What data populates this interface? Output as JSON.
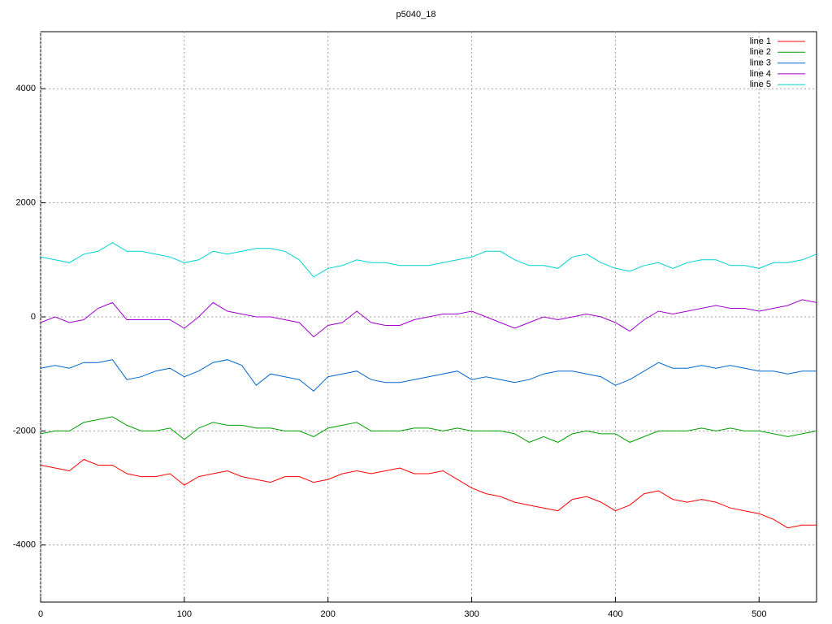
{
  "chart_data": {
    "type": "line",
    "title": "p5040_18",
    "x": [
      0,
      10,
      20,
      30,
      40,
      50,
      60,
      70,
      80,
      90,
      100,
      110,
      120,
      130,
      140,
      150,
      160,
      170,
      180,
      190,
      200,
      210,
      220,
      230,
      240,
      250,
      260,
      270,
      280,
      290,
      300,
      310,
      320,
      330,
      340,
      350,
      360,
      370,
      380,
      390,
      400,
      410,
      420,
      430,
      440,
      450,
      460,
      470,
      480,
      490,
      500,
      510,
      520,
      530,
      540
    ],
    "xlim": [
      0,
      540
    ],
    "xticks": [
      0,
      100,
      200,
      300,
      400,
      500
    ],
    "ylim": [
      -5000,
      5000
    ],
    "yticks": [
      -4000,
      -2000,
      0,
      2000,
      4000
    ],
    "grid": true,
    "legend": "top-right",
    "series": [
      {
        "name": "line 1",
        "color": "#ff0000",
        "values": [
          -2600,
          -2650,
          -2700,
          -2500,
          -2600,
          -2600,
          -2750,
          -2800,
          -2800,
          -2750,
          -2950,
          -2800,
          -2750,
          -2700,
          -2800,
          -2850,
          -2900,
          -2800,
          -2800,
          -2900,
          -2850,
          -2750,
          -2700,
          -2750,
          -2700,
          -2650,
          -2750,
          -2750,
          -2700,
          -2850,
          -3000,
          -3100,
          -3150,
          -3250,
          -3300,
          -3350,
          -3400,
          -3200,
          -3150,
          -3250,
          -3400,
          -3300,
          -3100,
          -3050,
          -3200,
          -3250,
          -3200,
          -3250,
          -3350,
          -3400,
          -3450,
          -3550,
          -3700,
          -3650,
          -3650
        ]
      },
      {
        "name": "line 2",
        "color": "#00a000",
        "values": [
          -2050,
          -2000,
          -2000,
          -1850,
          -1800,
          -1750,
          -1900,
          -2000,
          -2000,
          -1950,
          -2150,
          -1950,
          -1850,
          -1900,
          -1900,
          -1950,
          -1950,
          -2000,
          -2000,
          -2100,
          -1950,
          -1900,
          -1850,
          -2000,
          -2000,
          -2000,
          -1950,
          -1950,
          -2000,
          -1950,
          -2000,
          -2000,
          -2000,
          -2050,
          -2200,
          -2100,
          -2200,
          -2050,
          -2000,
          -2050,
          -2050,
          -2200,
          -2100,
          -2000,
          -2000,
          -2000,
          -1950,
          -2000,
          -1950,
          -2000,
          -2000,
          -2050,
          -2100,
          -2050,
          -2000
        ]
      },
      {
        "name": "line 3",
        "color": "#0066cc",
        "values": [
          -900,
          -850,
          -900,
          -800,
          -800,
          -750,
          -1100,
          -1050,
          -950,
          -900,
          -1050,
          -950,
          -800,
          -750,
          -850,
          -1200,
          -1000,
          -1050,
          -1100,
          -1300,
          -1050,
          -1000,
          -950,
          -1100,
          -1150,
          -1150,
          -1100,
          -1050,
          -1000,
          -950,
          -1100,
          -1050,
          -1100,
          -1150,
          -1100,
          -1000,
          -950,
          -950,
          -1000,
          -1050,
          -1200,
          -1100,
          -950,
          -800,
          -900,
          -900,
          -850,
          -900,
          -850,
          -900,
          -950,
          -950,
          -1000,
          -950,
          -950
        ]
      },
      {
        "name": "line 4",
        "color": "#a000d0",
        "values": [
          -100,
          0,
          -100,
          -50,
          150,
          250,
          -50,
          -50,
          -50,
          -50,
          -200,
          0,
          250,
          100,
          50,
          0,
          0,
          -50,
          -100,
          -350,
          -150,
          -100,
          100,
          -100,
          -150,
          -150,
          -50,
          0,
          50,
          50,
          100,
          0,
          -100,
          -200,
          -100,
          0,
          -50,
          0,
          50,
          0,
          -100,
          -250,
          -50,
          100,
          50,
          100,
          150,
          200,
          150,
          150,
          100,
          150,
          200,
          300,
          250
        ]
      },
      {
        "name": "line 5",
        "color": "#00d0d0",
        "values": [
          1050,
          1000,
          950,
          1100,
          1150,
          1300,
          1150,
          1150,
          1100,
          1050,
          950,
          1000,
          1150,
          1100,
          1150,
          1200,
          1200,
          1150,
          1000,
          700,
          850,
          900,
          1000,
          950,
          950,
          900,
          900,
          900,
          950,
          1000,
          1050,
          1150,
          1150,
          1000,
          900,
          900,
          850,
          1050,
          1100,
          950,
          850,
          800,
          900,
          950,
          850,
          950,
          1000,
          1000,
          900,
          900,
          850,
          950,
          950,
          1000,
          1100
        ]
      }
    ]
  }
}
